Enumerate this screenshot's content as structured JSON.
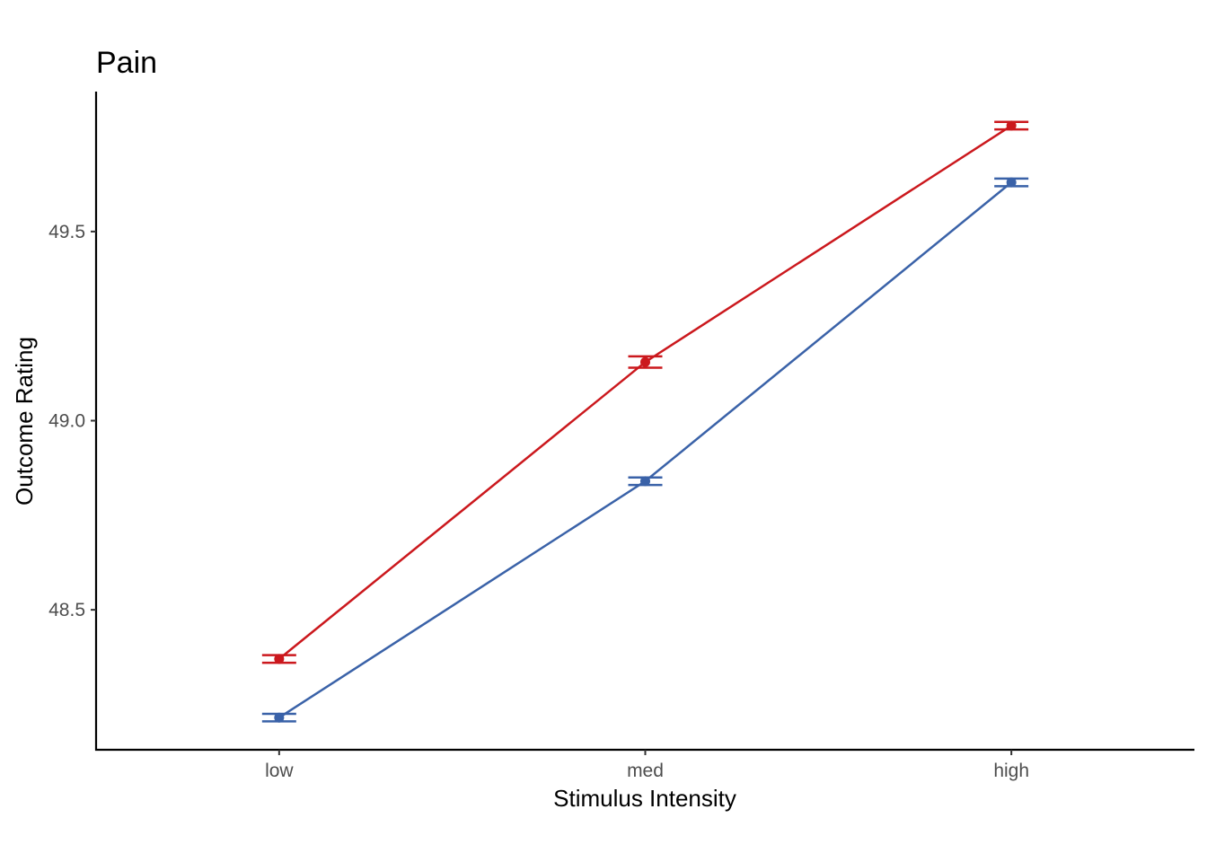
{
  "chart_data": {
    "type": "line",
    "title": "Pain",
    "xlabel": "Stimulus Intensity",
    "ylabel": "Outcome Rating",
    "categories": [
      "low",
      "med",
      "high"
    ],
    "ylim": [
      48.13,
      49.87
    ],
    "yticks": [
      48.5,
      49.0,
      49.5
    ],
    "ytick_labels": [
      "48.5",
      "49.0",
      "49.5"
    ],
    "grid": false,
    "legend": "none",
    "series": [
      {
        "color": "#CB181D",
        "values": [
          48.37,
          49.155,
          49.78
        ],
        "error_low": [
          48.36,
          49.14,
          49.77
        ],
        "error_high": [
          48.38,
          49.17,
          49.79
        ]
      },
      {
        "color": "#3A62A8",
        "values": [
          48.215,
          48.84,
          49.63
        ],
        "error_low": [
          48.205,
          48.83,
          49.62
        ],
        "error_high": [
          48.225,
          48.85,
          49.64
        ]
      }
    ]
  }
}
